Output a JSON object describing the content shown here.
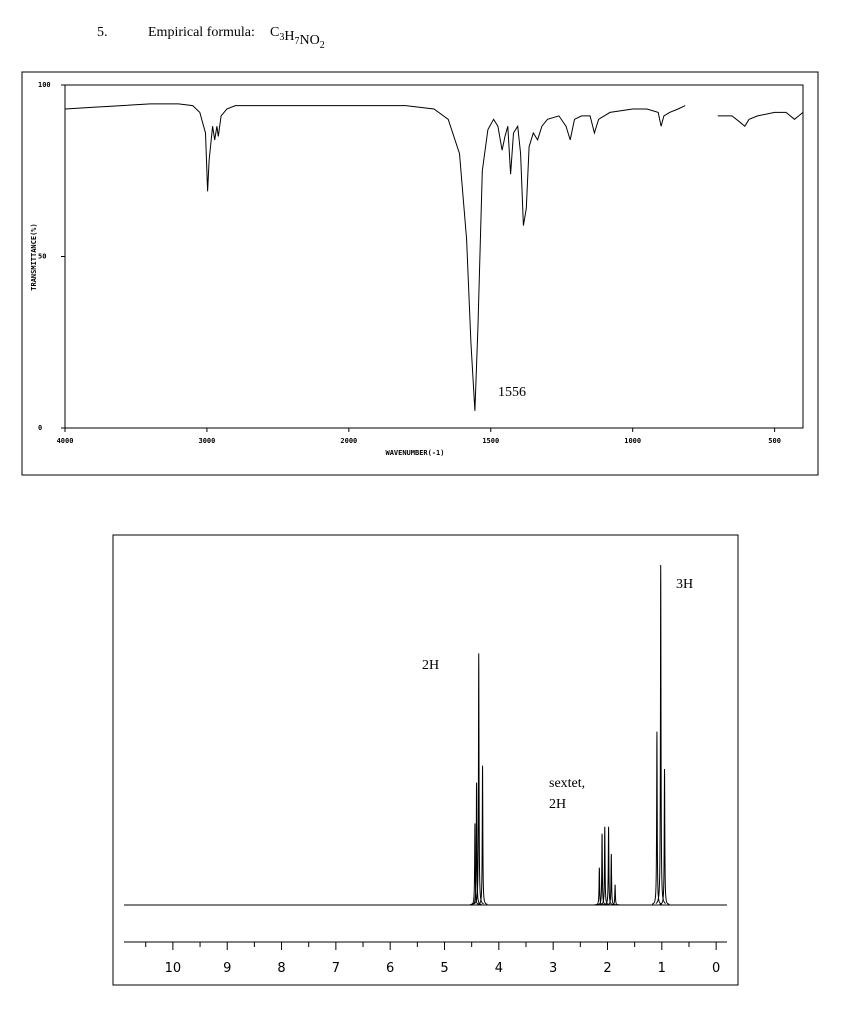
{
  "header": {
    "number": "5.",
    "text": "Empirical formula:",
    "formula": [
      {
        "symbol": "C",
        "count": "3"
      },
      {
        "symbol": "H",
        "count": "7"
      },
      {
        "symbol": "NO",
        "count": "2"
      }
    ]
  },
  "chart_data": [
    {
      "type": "line",
      "ylabel": "TRANSMITTANCE(%)",
      "xlabel": "WAVENUMBER(-1)",
      "xlim": [
        4000,
        400
      ],
      "xscale": {
        "break": 2000,
        "factor": 2
      },
      "xticks": [
        4000,
        3000,
        2000,
        1500,
        1000,
        500
      ],
      "ylim": [
        0,
        100
      ],
      "yticks": [
        0,
        50,
        100
      ],
      "color": "#000000",
      "annotations": [
        "1556"
      ],
      "x": [
        4000,
        3800,
        3600,
        3400,
        3200,
        3100,
        3050,
        3010,
        2995,
        2985,
        2960,
        2945,
        2930,
        2920,
        2900,
        2860,
        2800,
        2500,
        2200,
        2000,
        1800,
        1700,
        1650,
        1610,
        1585,
        1570,
        1556,
        1545,
        1530,
        1510,
        1490,
        1475,
        1460,
        1450,
        1440,
        1430,
        1420,
        1405,
        1395,
        1385,
        1375,
        1365,
        1350,
        1335,
        1320,
        1300,
        1260,
        1235,
        1220,
        1205,
        1180,
        1150,
        1135,
        1120,
        1080,
        1000,
        950,
        910,
        900,
        890,
        870,
        840,
        815,
        812,
        700,
        650,
        620,
        605,
        590,
        560,
        500,
        460,
        430,
        415,
        400
      ],
      "values": [
        93,
        93.5,
        94,
        94.5,
        94.5,
        94,
        92,
        86,
        69,
        78,
        88,
        84,
        88,
        85,
        91,
        93,
        94,
        94,
        94,
        94,
        94,
        93,
        90,
        80,
        55,
        25,
        5,
        30,
        75,
        87,
        90,
        88,
        81,
        85,
        88,
        74,
        86,
        88,
        80,
        59,
        64,
        82,
        86,
        84,
        88,
        90,
        91,
        88,
        84,
        90,
        91,
        91,
        86,
        90,
        92,
        93,
        93,
        92,
        88,
        91,
        92,
        93,
        94,
        null,
        91,
        91,
        89,
        88,
        90,
        91,
        92,
        92,
        90,
        91,
        92
      ]
    },
    {
      "type": "spectrum",
      "xlim": [
        10.9,
        -0.2
      ],
      "ylim": [
        0,
        100
      ],
      "xticks": [
        10,
        9,
        8,
        7,
        6,
        5,
        4,
        3,
        2,
        1,
        0
      ],
      "xminorticks": [
        10.5,
        9.5,
        8.5,
        7.5,
        6.5,
        5.5,
        4.5,
        3.5,
        2.5,
        1.5,
        0.5
      ],
      "color": "#000000",
      "annotations": [
        "2H",
        "sextet,",
        "2H",
        "3H"
      ],
      "x": [
        4.44,
        4.41,
        4.37,
        4.3,
        2.15,
        2.1,
        2.05,
        1.98,
        1.93,
        1.86,
        1.09,
        1.02,
        0.95
      ],
      "values": [
        24,
        36,
        74,
        41,
        11,
        21,
        23,
        23,
        15,
        6,
        51,
        100,
        40
      ]
    }
  ]
}
